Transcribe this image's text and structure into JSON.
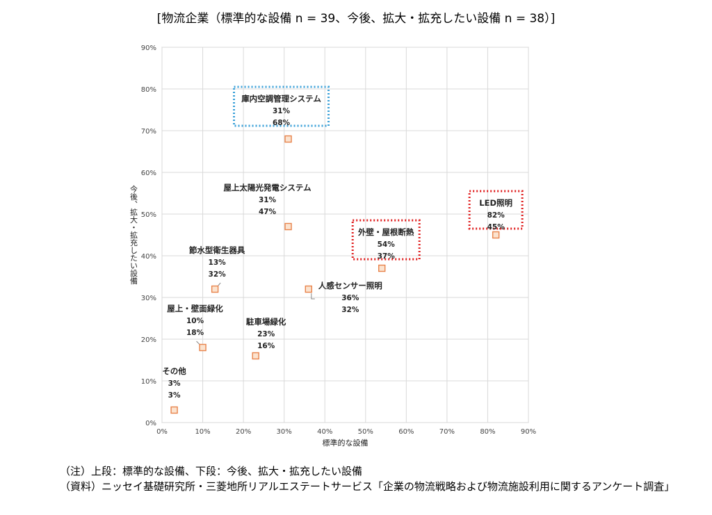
{
  "chart_data": {
    "type": "scatter",
    "title": "[物流企業（標準的な設備 n = 39、今後、拡大・拡充したい設備 n = 38）]",
    "xlabel": "標準的な設備",
    "ylabel": "今後、拡大・拡充したい設備",
    "xlim": [
      0,
      90
    ],
    "ylim": [
      0,
      90
    ],
    "x_ticks": [
      "0%",
      "10%",
      "20%",
      "30%",
      "40%",
      "50%",
      "60%",
      "70%",
      "80%",
      "90%"
    ],
    "y_ticks": [
      "0%",
      "10%",
      "20%",
      "30%",
      "40%",
      "50%",
      "60%",
      "70%",
      "80%",
      "90%"
    ],
    "grid": true,
    "marker_color": "#e8824a",
    "marker_fill": "#fbe3cf",
    "highlight_blue": "#3aa0d8",
    "highlight_red": "#e02020",
    "points": [
      {
        "label": "庫内空調管理システム",
        "x": 31,
        "y": 68,
        "x_text": "31%",
        "y_text": "68%",
        "highlight": "blue"
      },
      {
        "label": "屋上太陽光発電システム",
        "x": 31,
        "y": 47,
        "x_text": "31%",
        "y_text": "47%",
        "highlight": ""
      },
      {
        "label": "LED照明",
        "x": 82,
        "y": 45,
        "x_text": "82%",
        "y_text": "45%",
        "highlight": "red"
      },
      {
        "label": "外壁・屋根断熱",
        "x": 54,
        "y": 37,
        "x_text": "54%",
        "y_text": "37%",
        "highlight": "red"
      },
      {
        "label": "節水型衛生器具",
        "x": 13,
        "y": 32,
        "x_text": "13%",
        "y_text": "32%",
        "highlight": ""
      },
      {
        "label": "人感センサー照明",
        "x": 36,
        "y": 32,
        "x_text": "36%",
        "y_text": "32%",
        "highlight": ""
      },
      {
        "label": "屋上・壁面緑化",
        "x": 10,
        "y": 18,
        "x_text": "10%",
        "y_text": "18%",
        "highlight": ""
      },
      {
        "label": "駐車場緑化",
        "x": 23,
        "y": 16,
        "x_text": "23%",
        "y_text": "16%",
        "highlight": ""
      },
      {
        "label": "その他",
        "x": 3,
        "y": 3,
        "x_text": "3%",
        "y_text": "3%",
        "highlight": ""
      }
    ]
  },
  "notes": [
    "（注）上段：標準的な設備、下段：今後、拡大・拡充したい設備",
    "（資料）ニッセイ基礎研究所・三菱地所リアルエステートサービス「企業の物流戦略および物流施設利用に関するアンケート調査」"
  ]
}
